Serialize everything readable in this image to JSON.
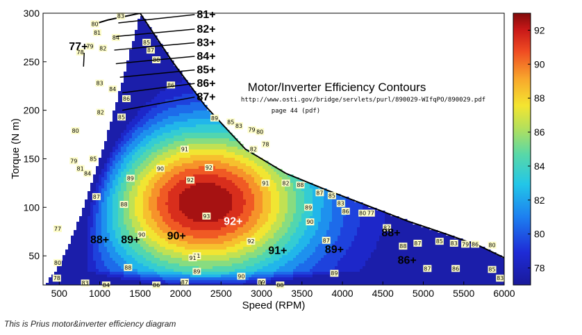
{
  "caption": "This is Prius motor&inverter efficiency diagram",
  "chart_data": {
    "type": "contour",
    "title": "Motor/Inverter Efficiency Contours",
    "source_url": "http://www.osti.gov/bridge/servlets/purl/890029-WIfqPO/890029.pdf",
    "source_page": "page 44 (pdf)",
    "xlabel": "Speed (RPM)",
    "ylabel": "Torque (N m)",
    "xlim": [
      300,
      6000
    ],
    "ylim": [
      20,
      300
    ],
    "xticks": [
      "500",
      "1000",
      "1500",
      "2000",
      "2500",
      "3000",
      "3500",
      "4000",
      "4500",
      "5000",
      "5500",
      "6000"
    ],
    "yticks": [
      "50",
      "100",
      "150",
      "200",
      "250",
      "300"
    ],
    "colorbar": {
      "min": 77,
      "max": 93,
      "ticks": [
        "78",
        "80",
        "82",
        "84",
        "86",
        "88",
        "90",
        "92"
      ]
    },
    "contour_levels": [
      77,
      78,
      79,
      80,
      81,
      82,
      83,
      84,
      85,
      86,
      87,
      88,
      89,
      90,
      91,
      92,
      93
    ],
    "peak": {
      "speed": 2300,
      "torque": 105,
      "efficiency": 93
    },
    "max_torque_curve": [
      [
        900,
        288
      ],
      [
        1100,
        293
      ],
      [
        1500,
        300
      ],
      [
        1900,
        250
      ],
      [
        2300,
        205
      ],
      [
        2800,
        160
      ],
      [
        3300,
        135
      ],
      [
        3800,
        118
      ],
      [
        4300,
        102
      ],
      [
        4800,
        86
      ],
      [
        5300,
        72
      ],
      [
        5700,
        60
      ],
      [
        6000,
        48
      ]
    ],
    "region_labels": [
      {
        "text": "92+",
        "speed": 2650,
        "torque": 82,
        "color": "#ffffff"
      },
      {
        "text": "91+",
        "speed": 3200,
        "torque": 52,
        "color": "#000000"
      },
      {
        "text": "90+",
        "speed": 1950,
        "torque": 67,
        "color": "#000000"
      },
      {
        "text": "89+",
        "speed": 3900,
        "torque": 53,
        "color": "#000000"
      },
      {
        "text": "89+",
        "speed": 1380,
        "torque": 63,
        "color": "#000000"
      },
      {
        "text": "88+",
        "speed": 4600,
        "torque": 70,
        "color": "#000000"
      },
      {
        "text": "88+",
        "speed": 1000,
        "torque": 63,
        "color": "#000000"
      },
      {
        "text": "86+",
        "speed": 4800,
        "torque": 42,
        "color": "#000000"
      }
    ],
    "callouts": [
      {
        "text": "77+",
        "speed": 620,
        "torque": 262
      },
      {
        "text": "81+",
        "speed": 2200,
        "torque": 295
      },
      {
        "text": "82+",
        "speed": 2200,
        "torque": 280
      },
      {
        "text": "83+",
        "speed": 2200,
        "torque": 266
      },
      {
        "text": "84+",
        "speed": 2200,
        "torque": 252
      },
      {
        "text": "85+",
        "speed": 2200,
        "torque": 238
      },
      {
        "text": "86+",
        "speed": 2200,
        "torque": 224
      },
      {
        "text": "87+",
        "speed": 2200,
        "torque": 210
      }
    ],
    "contour_tags": [
      {
        "text": "77",
        "speed": 480,
        "torque": 78
      },
      {
        "text": "80",
        "speed": 480,
        "torque": 43
      },
      {
        "text": "78",
        "speed": 470,
        "torque": 27
      },
      {
        "text": "79",
        "speed": 680,
        "torque": 148
      },
      {
        "text": "81",
        "speed": 760,
        "torque": 140
      },
      {
        "text": "80",
        "speed": 700,
        "torque": 179
      },
      {
        "text": "82",
        "speed": 1010,
        "torque": 198
      },
      {
        "text": "83",
        "speed": 1000,
        "torque": 228
      },
      {
        "text": "84",
        "speed": 1160,
        "torque": 222
      },
      {
        "text": "85",
        "speed": 1270,
        "torque": 193
      },
      {
        "text": "86",
        "speed": 1330,
        "torque": 212
      },
      {
        "text": "84",
        "speed": 850,
        "torque": 135
      },
      {
        "text": "85",
        "speed": 920,
        "torque": 150
      },
      {
        "text": "87",
        "speed": 960,
        "torque": 111
      },
      {
        "text": "88",
        "speed": 1300,
        "torque": 103
      },
      {
        "text": "89",
        "speed": 1380,
        "torque": 130
      },
      {
        "text": "90",
        "speed": 1750,
        "torque": 140
      },
      {
        "text": "91",
        "speed": 2050,
        "torque": 160
      },
      {
        "text": "92",
        "speed": 2350,
        "torque": 141
      },
      {
        "text": "92",
        "speed": 2120,
        "torque": 128
      },
      {
        "text": "93",
        "speed": 2320,
        "torque": 91
      },
      {
        "text": "91",
        "speed": 3050,
        "torque": 125
      },
      {
        "text": "90",
        "speed": 1520,
        "torque": 72
      },
      {
        "text": "91",
        "speed": 2200,
        "torque": 50
      },
      {
        "text": "90",
        "speed": 2750,
        "torque": 29
      },
      {
        "text": "89",
        "speed": 2200,
        "torque": 34
      },
      {
        "text": "88",
        "speed": 1350,
        "torque": 38
      },
      {
        "text": "87",
        "speed": 2050,
        "torque": 23
      },
      {
        "text": "86",
        "speed": 1700,
        "torque": 20
      },
      {
        "text": "84",
        "speed": 1080,
        "torque": 20
      },
      {
        "text": "83",
        "speed": 820,
        "torque": 22
      },
      {
        "text": "82",
        "speed": 1040,
        "torque": 264
      },
      {
        "text": "81",
        "speed": 970,
        "torque": 280
      },
      {
        "text": "80",
        "speed": 940,
        "torque": 289
      },
      {
        "text": "79",
        "speed": 880,
        "torque": 266
      },
      {
        "text": "78",
        "speed": 760,
        "torque": 260
      },
      {
        "text": "83",
        "speed": 1260,
        "torque": 297
      },
      {
        "text": "85",
        "speed": 1580,
        "torque": 270
      },
      {
        "text": "87",
        "speed": 1630,
        "torque": 262
      },
      {
        "text": "88",
        "speed": 1700,
        "torque": 252
      },
      {
        "text": "86",
        "speed": 1880,
        "torque": 226
      },
      {
        "text": "89",
        "speed": 2420,
        "torque": 192
      },
      {
        "text": "85",
        "speed": 2620,
        "torque": 188
      },
      {
        "text": "83",
        "speed": 2720,
        "torque": 184
      },
      {
        "text": "79",
        "speed": 2880,
        "torque": 180
      },
      {
        "text": "80",
        "speed": 2980,
        "torque": 178
      },
      {
        "text": "82",
        "speed": 2900,
        "torque": 160
      },
      {
        "text": "78",
        "speed": 3050,
        "torque": 165
      },
      {
        "text": "82",
        "speed": 3300,
        "torque": 125
      },
      {
        "text": "88",
        "speed": 3480,
        "torque": 123
      },
      {
        "text": "87",
        "speed": 3720,
        "torque": 115
      },
      {
        "text": "85",
        "speed": 3870,
        "torque": 112
      },
      {
        "text": "83",
        "speed": 3980,
        "torque": 104
      },
      {
        "text": "86",
        "speed": 4040,
        "torque": 96
      },
      {
        "text": "80",
        "speed": 4250,
        "torque": 94
      },
      {
        "text": "77",
        "speed": 4350,
        "torque": 94
      },
      {
        "text": "89",
        "speed": 3580,
        "torque": 100
      },
      {
        "text": "90",
        "speed": 3600,
        "torque": 85
      },
      {
        "text": "87",
        "speed": 3800,
        "torque": 66
      },
      {
        "text": "88",
        "speed": 4750,
        "torque": 60
      },
      {
        "text": "87",
        "speed": 4930,
        "torque": 63
      },
      {
        "text": "85",
        "speed": 5200,
        "torque": 65
      },
      {
        "text": "83",
        "speed": 5380,
        "torque": 63
      },
      {
        "text": "79",
        "speed": 5520,
        "torque": 62
      },
      {
        "text": "86",
        "speed": 5640,
        "torque": 62
      },
      {
        "text": "80",
        "speed": 5850,
        "torque": 61
      },
      {
        "text": "82",
        "speed": 4550,
        "torque": 79
      },
      {
        "text": "89",
        "speed": 3000,
        "torque": 23
      },
      {
        "text": "88",
        "speed": 3230,
        "torque": 20
      },
      {
        "text": "87",
        "speed": 5050,
        "torque": 37
      },
      {
        "text": "86",
        "speed": 5400,
        "torque": 37
      },
      {
        "text": "85",
        "speed": 5850,
        "torque": 36
      },
      {
        "text": "83",
        "speed": 5950,
        "torque": 27
      },
      {
        "text": "89",
        "speed": 3900,
        "torque": 32
      },
      {
        "text": "91",
        "speed": 2150,
        "torque": 48
      },
      {
        "text": "92",
        "speed": 2870,
        "torque": 65
      },
      {
        "text": "84",
        "speed": 1200,
        "torque": 275
      }
    ]
  }
}
